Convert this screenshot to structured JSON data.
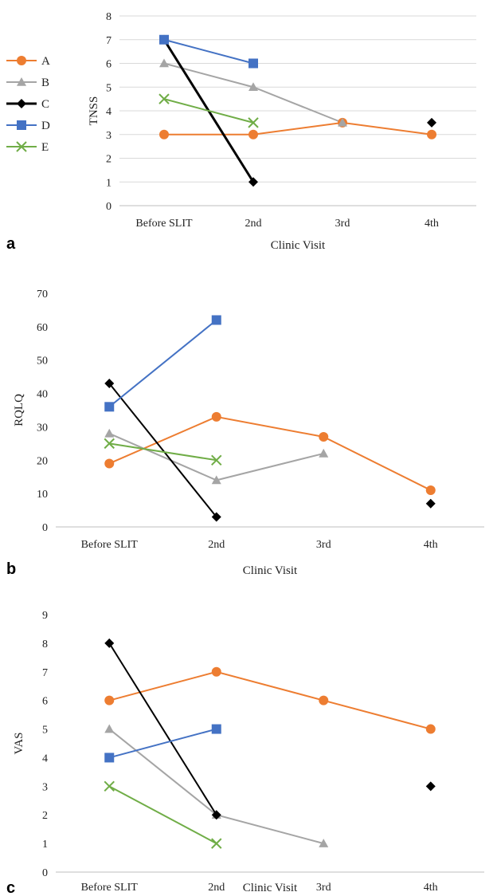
{
  "series_styles": {
    "A": {
      "color": "#ED7D31",
      "marker": "circle"
    },
    "B": {
      "color": "#A5A5A5",
      "marker": "triangle"
    },
    "C": {
      "color": "#000000",
      "marker": "diamond"
    },
    "D": {
      "color": "#4472C4",
      "marker": "square"
    },
    "E": {
      "color": "#70AD47",
      "marker": "x"
    }
  },
  "legend": {
    "entries": [
      "A",
      "B",
      "C",
      "D",
      "E"
    ]
  },
  "chart_data": [
    {
      "type": "line",
      "panel_label": "a",
      "categories": [
        "Before SLIT",
        "2nd",
        "3rd",
        "4th"
      ],
      "xlabel": "Clinic Visit",
      "ylabel": "TNSS",
      "ylim": [
        0,
        8
      ],
      "yticks": [
        0,
        1,
        2,
        3,
        4,
        5,
        6,
        7,
        8
      ],
      "grid": true,
      "legend_position": "left",
      "series": [
        {
          "name": "A",
          "values": [
            3,
            3,
            3.5,
            3
          ]
        },
        {
          "name": "B",
          "values": [
            6,
            5,
            3.5,
            null
          ]
        },
        {
          "name": "C",
          "values": [
            7,
            1,
            null,
            3.5
          ]
        },
        {
          "name": "D",
          "values": [
            7,
            6,
            null,
            null
          ]
        },
        {
          "name": "E",
          "values": [
            4.5,
            3.5,
            null,
            null
          ]
        }
      ]
    },
    {
      "type": "line",
      "panel_label": "b",
      "categories": [
        "Before SLIT",
        "2nd",
        "3rd",
        "4th"
      ],
      "xlabel": "Clinic Visit",
      "ylabel": "RQLQ",
      "ylim": [
        0,
        70
      ],
      "yticks": [
        0,
        10,
        20,
        30,
        40,
        50,
        60,
        70
      ],
      "grid": false,
      "series": [
        {
          "name": "A",
          "values": [
            19,
            33,
            27,
            11
          ]
        },
        {
          "name": "B",
          "values": [
            28,
            14,
            22,
            null
          ]
        },
        {
          "name": "C",
          "values": [
            43,
            3,
            null,
            7
          ]
        },
        {
          "name": "D",
          "values": [
            36,
            62,
            null,
            null
          ]
        },
        {
          "name": "E",
          "values": [
            25,
            20,
            null,
            null
          ]
        }
      ]
    },
    {
      "type": "line",
      "panel_label": "c",
      "categories": [
        "Before SLIT",
        "2nd",
        "3rd",
        "4th"
      ],
      "xlabel": "Clinic Visit",
      "ylabel": "VAS",
      "ylim": [
        0,
        9
      ],
      "yticks": [
        0,
        1,
        2,
        3,
        4,
        5,
        6,
        7,
        8,
        9
      ],
      "grid": false,
      "series": [
        {
          "name": "A",
          "values": [
            6,
            7,
            6,
            5
          ]
        },
        {
          "name": "B",
          "values": [
            5,
            2,
            1,
            null
          ]
        },
        {
          "name": "C",
          "values": [
            8,
            2,
            null,
            3
          ]
        },
        {
          "name": "D",
          "values": [
            4,
            5,
            null,
            null
          ]
        },
        {
          "name": "E",
          "values": [
            3,
            1,
            null,
            null
          ]
        }
      ]
    }
  ]
}
